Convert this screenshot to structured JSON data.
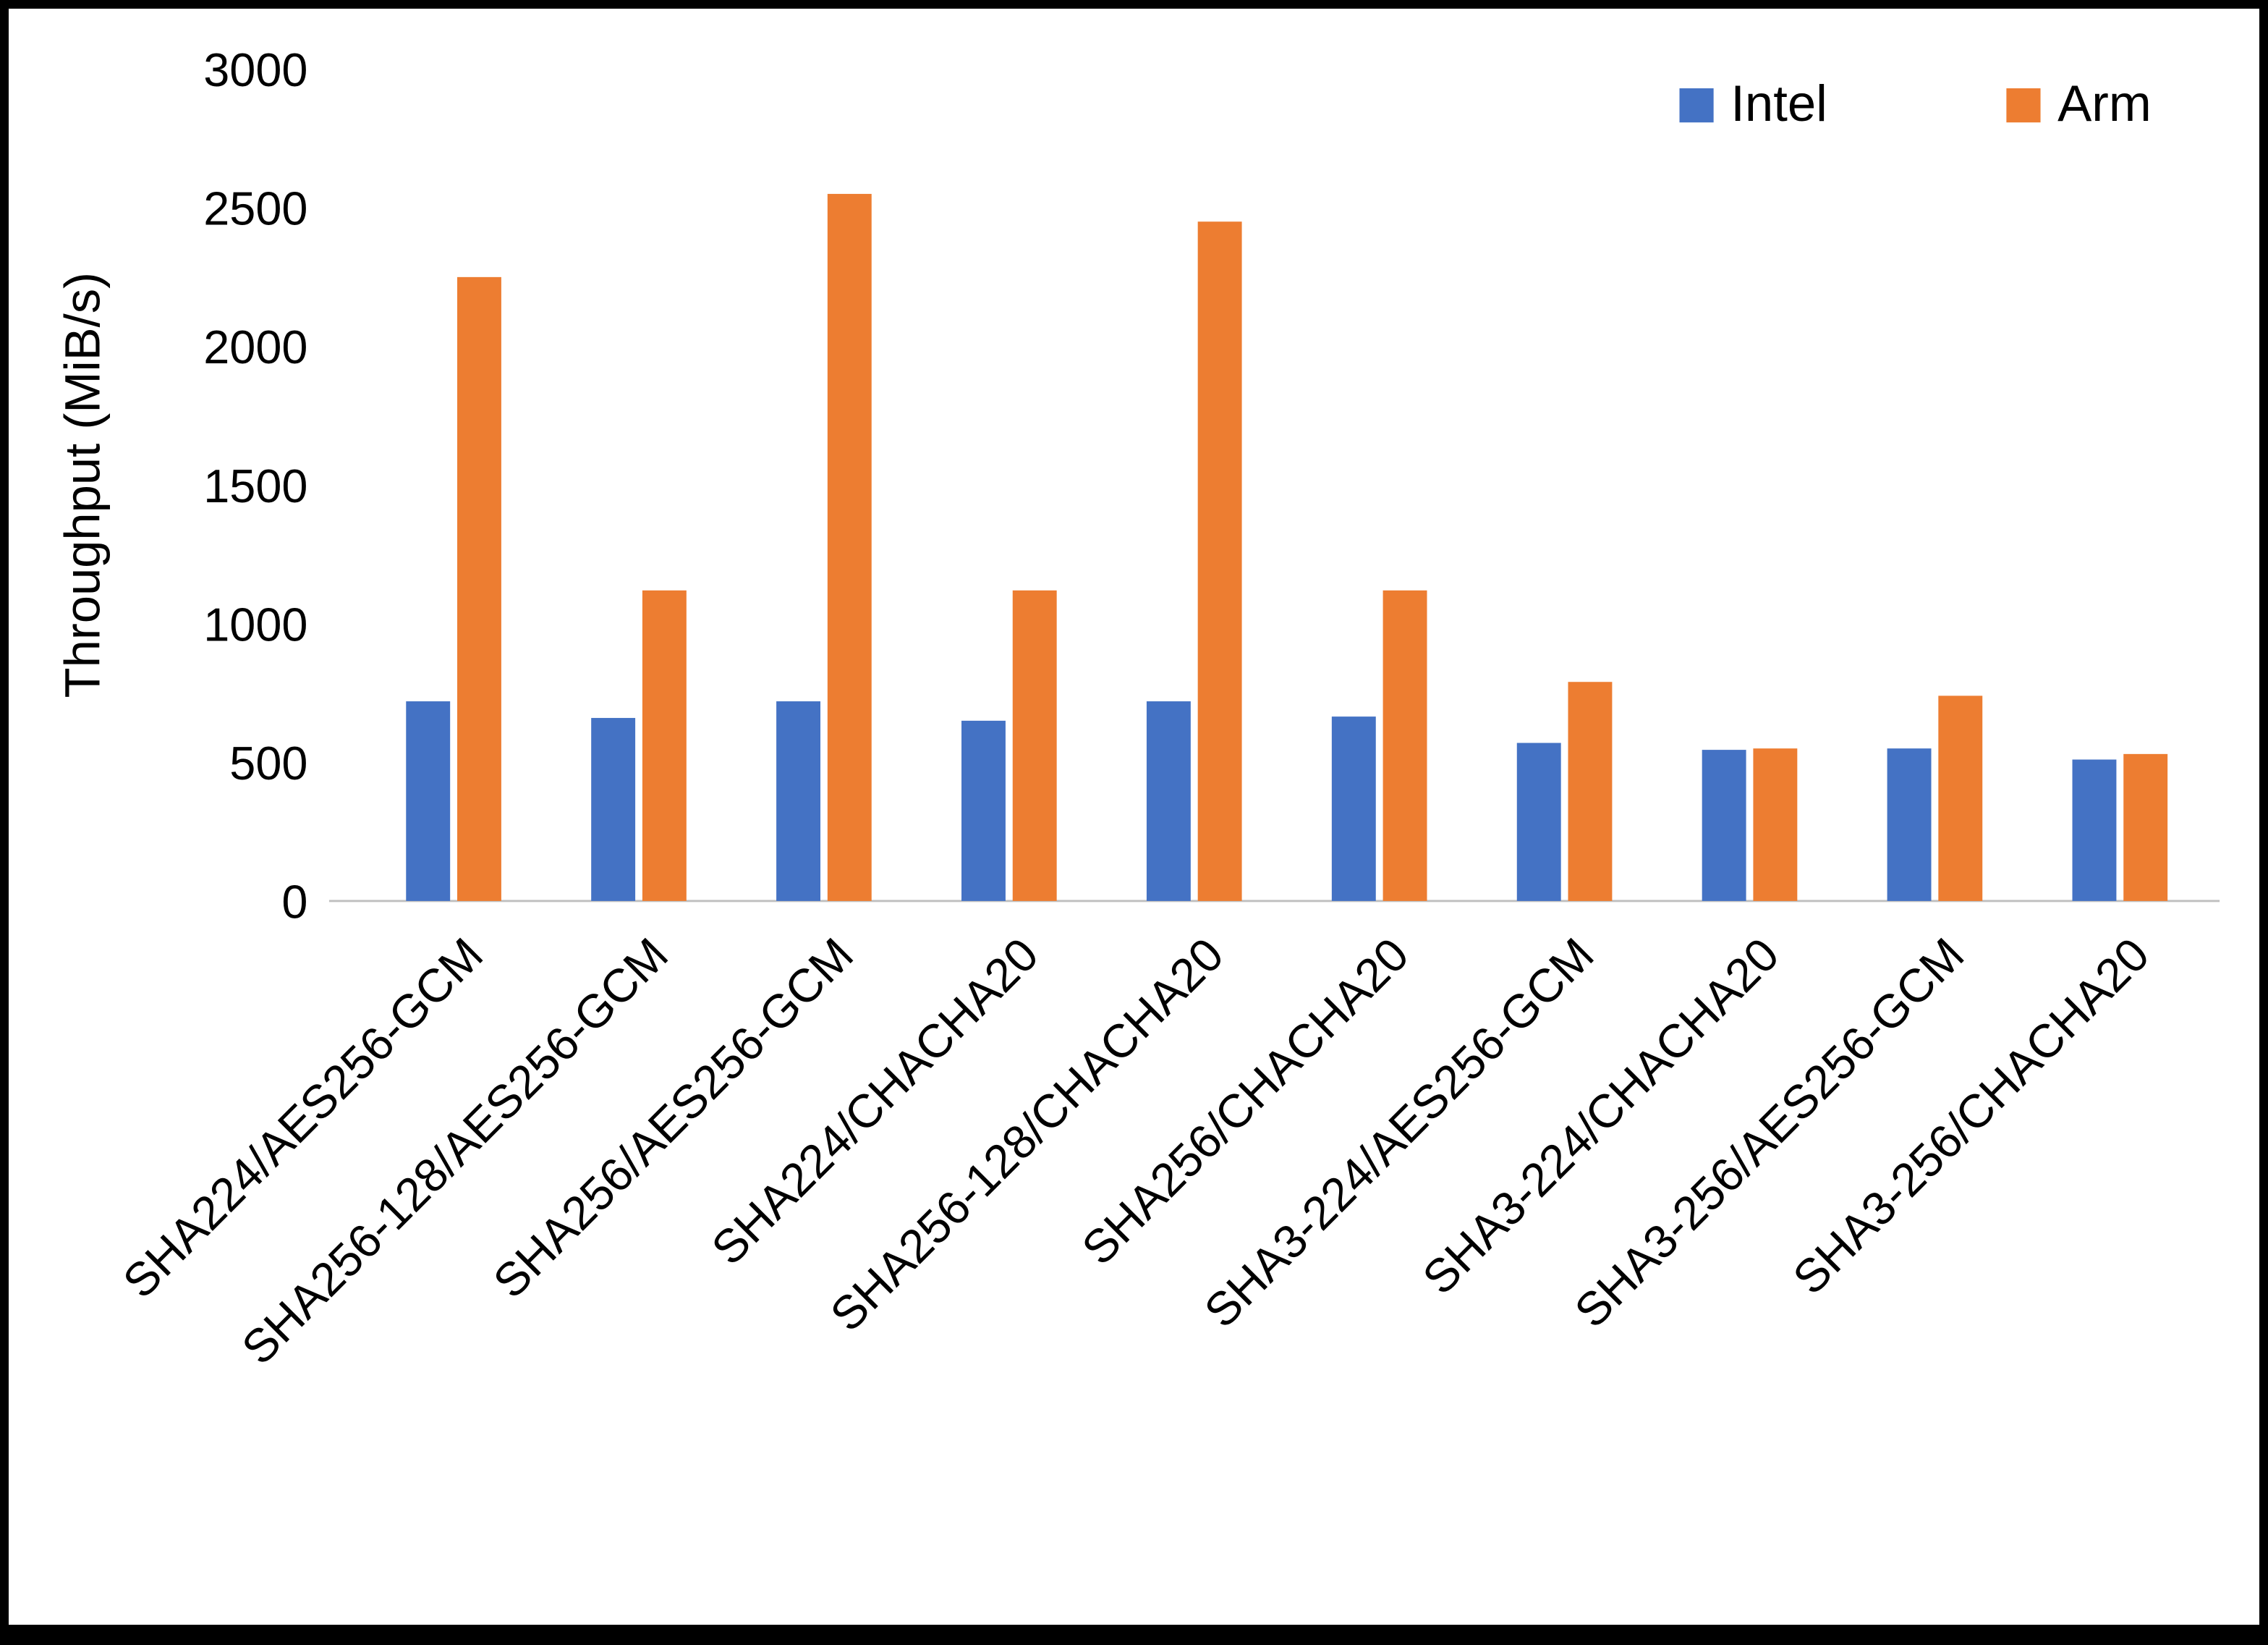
{
  "chart_data": {
    "type": "bar",
    "title": "",
    "xlabel": "",
    "ylabel": "Throughput (MiB/s)",
    "ylim": [
      0,
      3000
    ],
    "yticks": [
      0,
      500,
      1000,
      1500,
      2000,
      2500,
      3000
    ],
    "grid": false,
    "legend_position": "top-right",
    "x_label_rotation_deg": -45,
    "categories": [
      "SHA224/AES256-GCM",
      "SHA256-128/AES256-GCM",
      "SHA256/AES256-GCM",
      "SHA224/CHACHA20",
      "SHA256-128/CHACHA20",
      "SHA256/CHACHA20",
      "SHA3-224/AES256-GCM",
      "SHA3-224/CHACHA20",
      "SHA3-256/AES256-GCM",
      "SHA3-256/CHACHA20"
    ],
    "series": [
      {
        "name": "Intel",
        "color": "#4472C4",
        "values": [
          720,
          660,
          720,
          650,
          720,
          665,
          570,
          545,
          550,
          510
        ]
      },
      {
        "name": "Arm",
        "color": "#ED7D31",
        "values": [
          2250,
          1120,
          2550,
          1120,
          2450,
          1120,
          790,
          550,
          740,
          530
        ]
      }
    ]
  }
}
